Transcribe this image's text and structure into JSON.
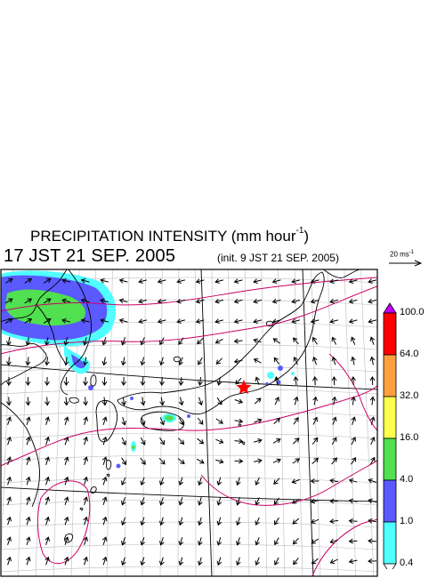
{
  "title": {
    "main": "PRECIPITATION INTENSITY (mm hour",
    "exp": "-1",
    "close": ")"
  },
  "timestamp": "17 JST 21 SEP. 2005",
  "init_text": "(init. 9 JST 21 SEP. 2005)",
  "wind_scale": {
    "label": "20 ms",
    "exp": "-1"
  },
  "colorbar": {
    "labels": [
      "100.0",
      "64.0",
      "32.0",
      "16.0",
      "4.0",
      "1.0",
      "0.4"
    ],
    "colors": [
      "#ff0000",
      "#ffa040",
      "#ffff50",
      "#50e050",
      "#5a5aff",
      "#50ffff"
    ],
    "over_color": "#c000ff",
    "under_color": "#ffffff"
  },
  "map": {
    "colors": {
      "coast": "#000000",
      "contour": "#cc0066",
      "grid": "#bdbdbd",
      "frame": "#000000",
      "storm_marker": "#ff0000"
    },
    "storm_marker": "red-star"
  }
}
